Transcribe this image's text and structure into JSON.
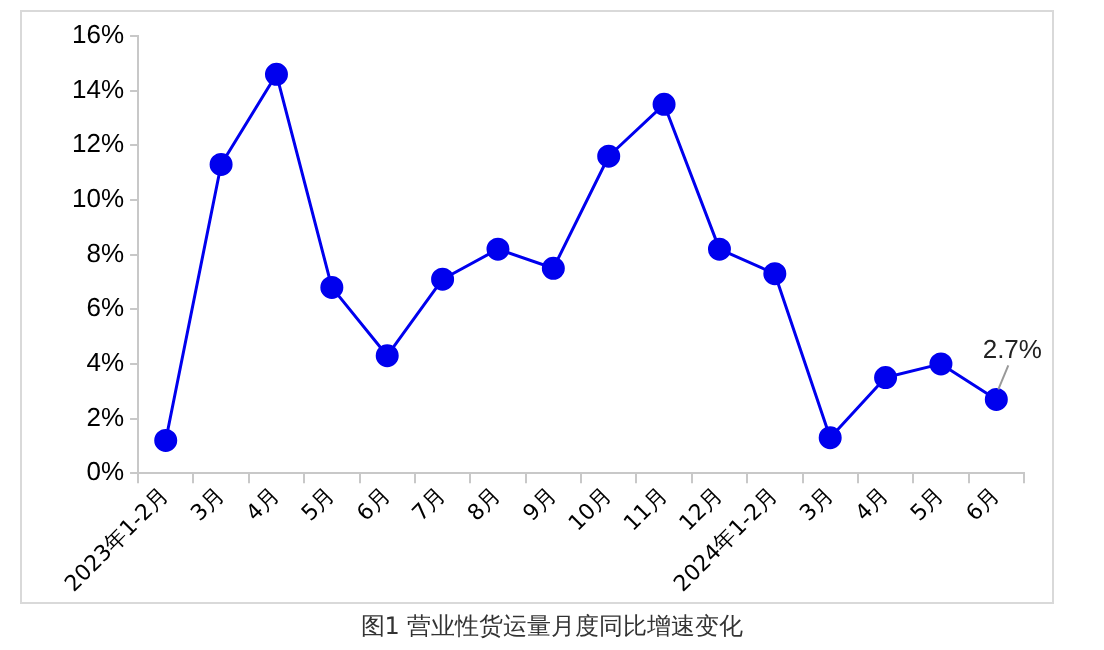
{
  "chart_data": {
    "type": "line",
    "title": "图1 营业性货运量月度同比增速变化",
    "categories": [
      "2023年1-2月",
      "3月",
      "4月",
      "5月",
      "6月",
      "7月",
      "8月",
      "9月",
      "10月",
      "11月",
      "12月",
      "2024年1-2月",
      "3月",
      "4月",
      "5月",
      "6月"
    ],
    "series": [
      {
        "color": "#0000ee",
        "values": [
          1.2,
          11.3,
          14.6,
          6.8,
          4.3,
          7.1,
          8.2,
          7.5,
          11.6,
          13.5,
          8.2,
          7.3,
          1.3,
          3.5,
          4.0,
          2.7
        ],
        "value_labels": [
          null,
          null,
          null,
          null,
          null,
          null,
          null,
          null,
          null,
          null,
          null,
          null,
          null,
          null,
          null,
          "2.7%"
        ]
      }
    ],
    "ylim": [
      0,
      16
    ],
    "yticks": [
      {
        "value": 0,
        "label": "0%"
      },
      {
        "value": 2,
        "label": "2%"
      },
      {
        "value": 4,
        "label": "4%"
      },
      {
        "value": 6,
        "label": "6%"
      },
      {
        "value": 8,
        "label": "8%"
      },
      {
        "value": 10,
        "label": "10%"
      },
      {
        "value": 12,
        "label": "12%"
      },
      {
        "value": 14,
        "label": "14%"
      },
      {
        "value": 16,
        "label": "16%"
      }
    ],
    "grid": false,
    "legend": false,
    "marker": "circle",
    "line_style": "solid"
  }
}
